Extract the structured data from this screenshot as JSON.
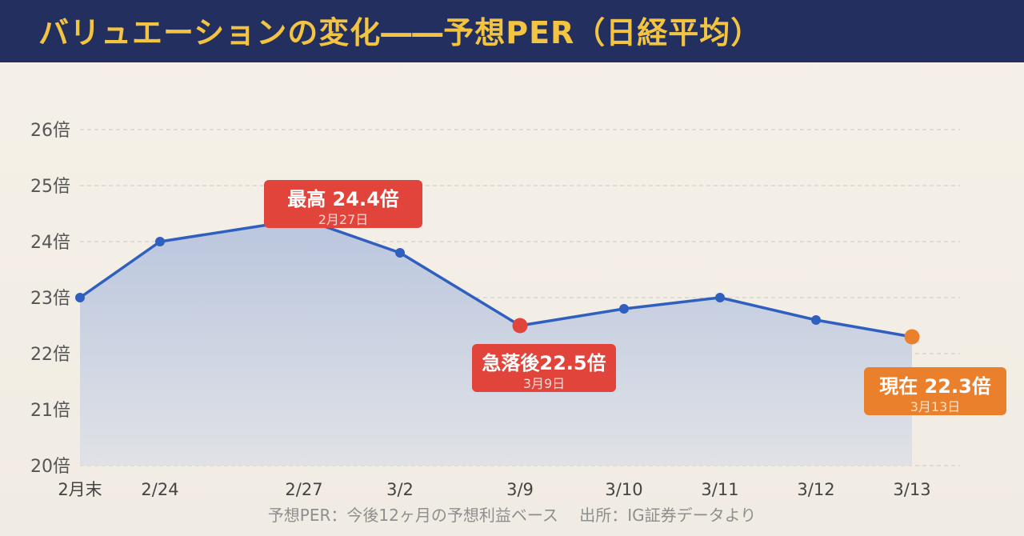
{
  "header": {
    "title": "バリュエーションの変化――予想PER（日経平均）"
  },
  "chart_data": {
    "type": "area",
    "title": "バリュエーションの変化――予想PER（日経平均）",
    "categories": [
      "2月末",
      "2/24",
      "2/27",
      "3/2",
      "3/9",
      "3/10",
      "3/11",
      "3/12",
      "3/13"
    ],
    "series": [
      {
        "values": [
          23.0,
          24.0,
          24.4,
          23.8,
          22.5,
          22.8,
          23.0,
          22.6,
          22.3
        ]
      }
    ],
    "y_ticks": [
      "20倍",
      "21倍",
      "22倍",
      "23倍",
      "24倍",
      "25倍",
      "26倍"
    ],
    "ylim": [
      20,
      26
    ],
    "grid": true,
    "colors": {
      "line": "#2f5fbf",
      "area_top": "#b7c4de",
      "area_bottom": "#dfe1e6",
      "high": "#e0443a",
      "low": "#e0443a",
      "current": "#ea7f2c"
    },
    "annotations": [
      {
        "index": 2,
        "main": "最高 24.4倍",
        "sub": "2月27日",
        "color": "#e0443a",
        "position": "above"
      },
      {
        "index": 4,
        "main": "急落後22.5倍",
        "sub": "3月9日",
        "color": "#e0443a",
        "position": "below"
      },
      {
        "index": 8,
        "main": "現在 22.3倍",
        "sub": "3月13日",
        "color": "#ea7f2c",
        "position": "below"
      }
    ]
  },
  "footer": {
    "note": "予想PER：今後12ヶ月の予想利益ベース　 出所：IG証券データより"
  }
}
